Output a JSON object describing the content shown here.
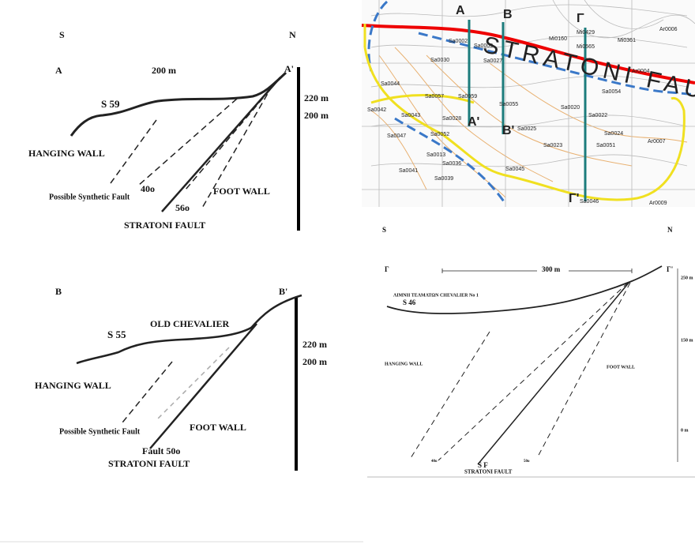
{
  "panel_a": {
    "south": "S",
    "north": "N",
    "start": "A",
    "end": "A'",
    "width": "200 m",
    "elev_top": "220 m",
    "elev_bottom": "200 m",
    "sample": "S 59",
    "hanging_wall": "HANGING WALL",
    "synthetic_fault": "Possible Synthetic Fault",
    "dip_synthetic": "40o",
    "dip_fault": "56o",
    "foot_wall": "FOOT WALL",
    "fault": "STRATONI FAULT"
  },
  "panel_b": {
    "start": "B",
    "end": "B'",
    "sample": "S 55",
    "site": "OLD CHEVALIER",
    "elev_top": "220 m",
    "elev_bottom": "200 m",
    "hanging_wall": "HANGING WALL",
    "synthetic_fault": "Possible Synthetic Fault",
    "foot_wall": "FOOT WALL",
    "dip_fault": "Fault 50o",
    "fault": "STRATONI FAULT"
  },
  "panel_g": {
    "south": "S",
    "north": "N",
    "start": "Γ",
    "end": "Γ'",
    "width": "300 m",
    "site": "ΛΙΜΝΗ ΤΕΛΜΑΤΩΝ CHEVALIER No 1",
    "sample": "S 46",
    "hanging_wall": "HANGING WALL",
    "foot_wall": "FOOT WALL",
    "dip_synthetic": "40o",
    "dip_fault": "50o",
    "fault_short": "S F",
    "fault": "STRATONI FAULT",
    "elevations": [
      "250 m",
      "150 m",
      "0 m"
    ]
  },
  "map": {
    "section_starts": [
      "A",
      "B",
      "Γ"
    ],
    "section_ends": [
      "A'",
      "B'",
      "Γ'"
    ],
    "fault_label": "STRATONI FAULT",
    "samples": [
      "Sa0002",
      "Sa0003",
      "Sa0030",
      "Sa0027",
      "Sa0044",
      "Sa0057",
      "Sa0059",
      "Sa0055",
      "Sa0042",
      "Sa0043",
      "Sa0028",
      "Sa0052",
      "Sa0047",
      "Sa0036",
      "Sa0013",
      "Sa0041",
      "Sa0039",
      "Sa0045",
      "Sa0025",
      "Sa0023",
      "Sa0051",
      "Sa0022",
      "Sa0020",
      "Sa0054",
      "Sa0024",
      "Sa0046",
      "Mi0429",
      "Mi0565",
      "Mi0361",
      "Mi0160",
      "Ar0004",
      "Ar0007",
      "Ar0009",
      "Ar0006"
    ]
  }
}
